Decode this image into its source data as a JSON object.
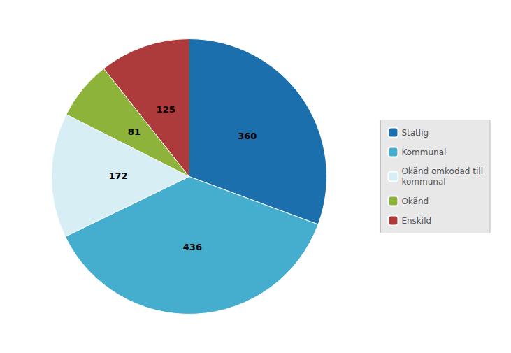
{
  "chart_data": {
    "type": "pie",
    "categories": [
      "Statlig",
      "Kommunal",
      "Okänd omkodad till\nkommunal",
      "Okänd",
      "Enskild"
    ],
    "values": [
      360,
      436,
      172,
      81,
      125
    ],
    "colors": [
      "#1C6FAD",
      "#45AECE",
      "#D8EEF5",
      "#8DB33A",
      "#AD3B3B"
    ],
    "data_labels": true,
    "legend": "right"
  }
}
